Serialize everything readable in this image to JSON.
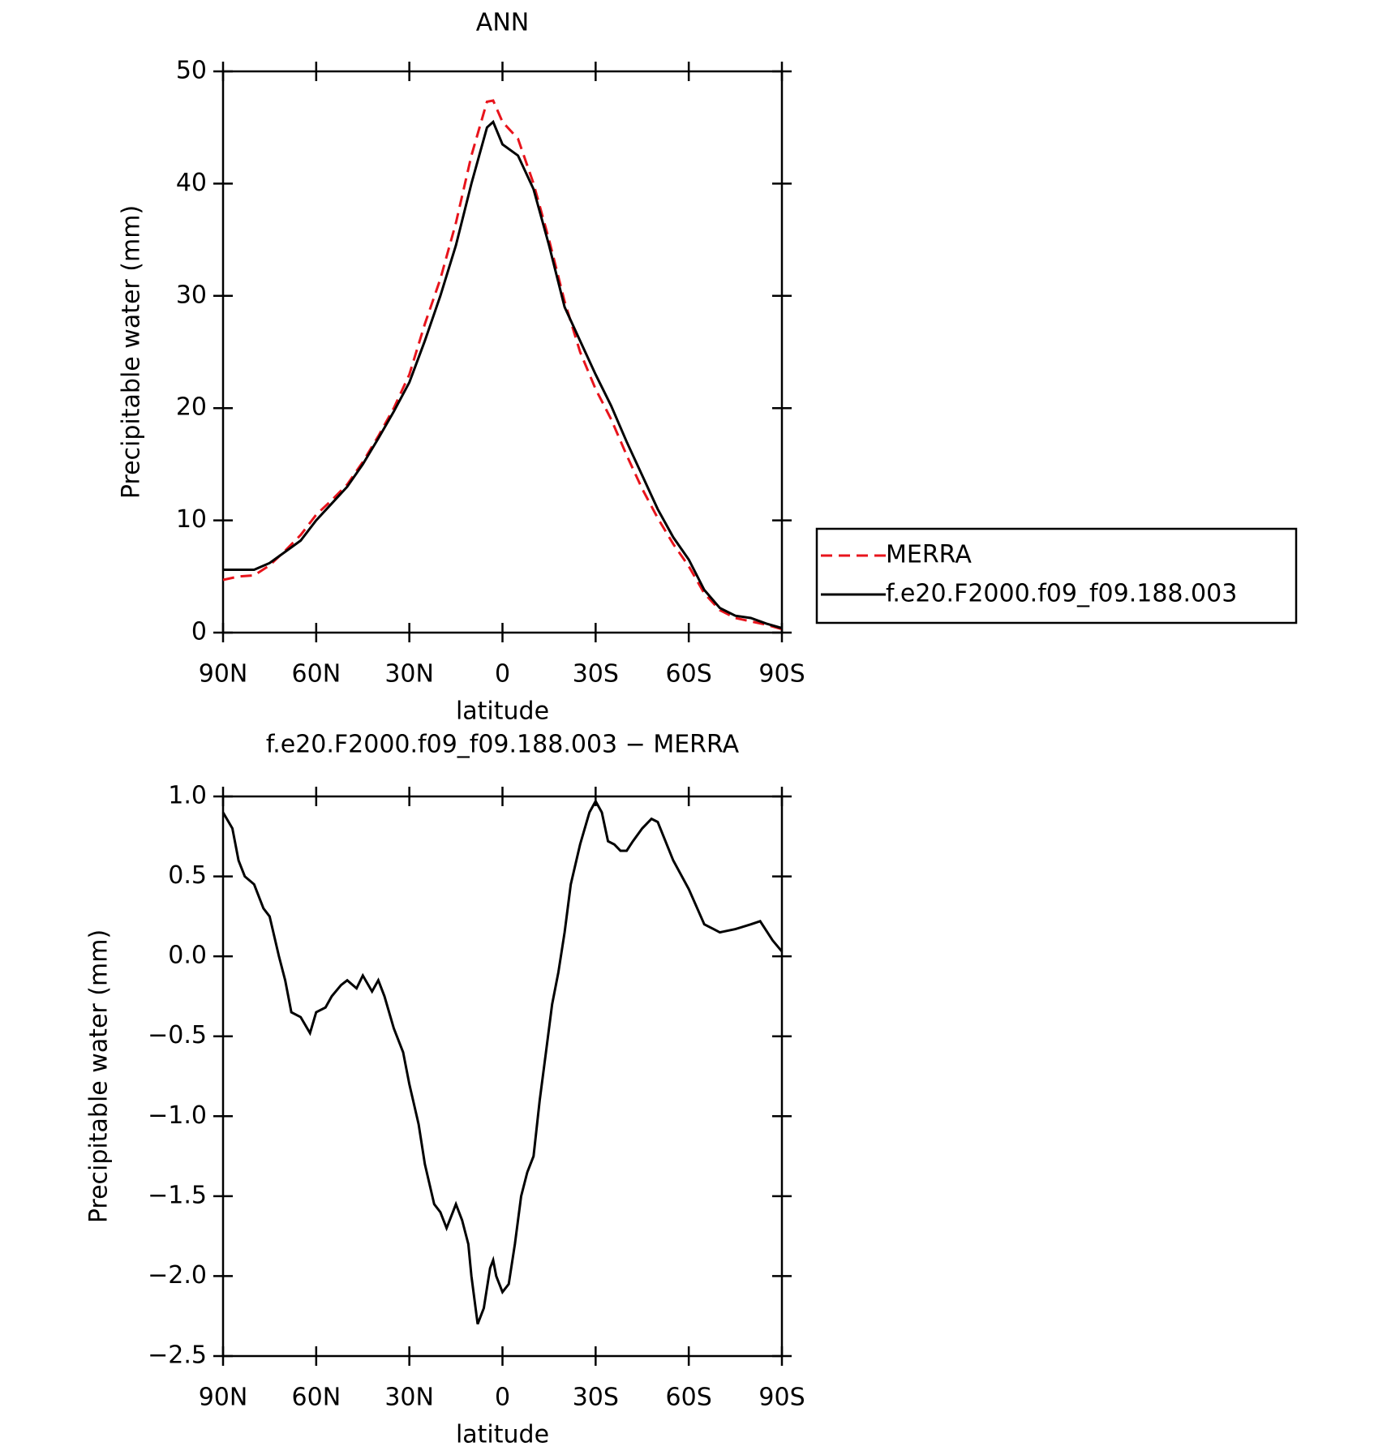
{
  "chart_data": [
    {
      "type": "line",
      "title": "ANN",
      "xlabel": "latitude",
      "ylabel": "Precipitable water (mm)",
      "x": [
        90,
        85,
        80,
        75,
        70,
        65,
        60,
        55,
        50,
        45,
        40,
        35,
        30,
        25,
        20,
        15,
        10,
        5,
        3,
        0,
        -5,
        -10,
        -15,
        -20,
        -25,
        -30,
        -35,
        -40,
        -45,
        -50,
        -55,
        -60,
        -65,
        -70,
        -75,
        -80,
        -85,
        -90
      ],
      "series": [
        {
          "name": "MERRA",
          "color": "#e8141c",
          "dashed": true,
          "values": [
            4.7,
            5.0,
            5.1,
            6.0,
            7.3,
            8.7,
            10.5,
            11.8,
            13.2,
            15.2,
            17.5,
            20.0,
            23.0,
            27.5,
            31.5,
            36.5,
            42.5,
            47.3,
            47.4,
            45.5,
            44.0,
            40.0,
            35.0,
            29.5,
            25.0,
            21.7,
            19.0,
            15.8,
            12.8,
            10.2,
            7.9,
            5.9,
            3.5,
            2.0,
            1.3,
            1.0,
            0.7,
            0.3
          ]
        },
        {
          "name": "f.e20.F2000.f09_f09.188.003",
          "color": "#000000",
          "dashed": false,
          "values": [
            5.6,
            5.6,
            5.6,
            6.2,
            7.2,
            8.2,
            10.0,
            11.5,
            13.0,
            15.0,
            17.3,
            19.7,
            22.3,
            26.0,
            30.0,
            34.5,
            40.0,
            45.0,
            45.5,
            43.5,
            42.5,
            39.5,
            34.5,
            29.0,
            26.0,
            23.0,
            20.2,
            17.0,
            14.0,
            11.0,
            8.5,
            6.5,
            3.8,
            2.2,
            1.5,
            1.3,
            0.8,
            0.4
          ]
        }
      ],
      "xlim": [
        90,
        -90
      ],
      "xticks": [
        {
          "value": 90,
          "label": "90N"
        },
        {
          "value": 60,
          "label": "60N"
        },
        {
          "value": 30,
          "label": "30N"
        },
        0,
        {
          "value": -30,
          "label": "30S"
        },
        {
          "value": -60,
          "label": "60S"
        },
        {
          "value": -90,
          "label": "90S"
        }
      ],
      "ylim": [
        0,
        50
      ],
      "yticks": [
        0,
        10,
        20,
        30,
        40,
        50
      ],
      "grid": false,
      "legend": "right"
    },
    {
      "type": "line",
      "title": "f.e20.F2000.f09_f09.188.003 − MERRA",
      "xlabel": "latitude",
      "ylabel": "Precipitable water (mm)",
      "x": [
        90,
        87,
        85,
        83,
        80,
        77,
        75,
        72,
        70,
        68,
        65,
        62,
        60,
        57,
        55,
        52,
        50,
        47,
        45,
        42,
        40,
        38,
        35,
        32,
        30,
        27,
        25,
        22,
        20,
        18,
        16,
        15,
        13,
        11,
        10,
        8,
        6,
        4,
        3,
        2,
        0,
        -2,
        -4,
        -6,
        -8,
        -10,
        -12,
        -14,
        -16,
        -18,
        -20,
        -22,
        -25,
        -28,
        -30,
        -32,
        -34,
        -36,
        -38,
        -40,
        -42,
        -45,
        -48,
        -50,
        -55,
        -60,
        -65,
        -68,
        -70,
        -75,
        -80,
        -83,
        -87,
        -90
      ],
      "series": [
        {
          "color": "#000000",
          "dashed": false,
          "values": [
            0.9,
            0.8,
            0.6,
            0.5,
            0.45,
            0.3,
            0.25,
            0.0,
            -0.15,
            -0.35,
            -0.38,
            -0.48,
            -0.35,
            -0.32,
            -0.25,
            -0.18,
            -0.15,
            -0.2,
            -0.12,
            -0.22,
            -0.15,
            -0.25,
            -0.45,
            -0.6,
            -0.8,
            -1.05,
            -1.3,
            -1.55,
            -1.6,
            -1.7,
            -1.6,
            -1.55,
            -1.65,
            -1.8,
            -2.0,
            -2.3,
            -2.2,
            -1.95,
            -1.9,
            -2.0,
            -2.1,
            -2.05,
            -1.8,
            -1.5,
            -1.35,
            -1.25,
            -0.9,
            -0.6,
            -0.3,
            -0.1,
            0.15,
            0.45,
            0.7,
            0.9,
            0.97,
            0.9,
            0.72,
            0.7,
            0.66,
            0.66,
            0.72,
            0.8,
            0.86,
            0.84,
            0.6,
            0.42,
            0.2,
            0.17,
            0.15,
            0.17,
            0.2,
            0.22,
            0.1,
            0.03
          ]
        }
      ],
      "xlim": [
        90,
        -90
      ],
      "xticks": [
        {
          "value": 90,
          "label": "90N"
        },
        {
          "value": 60,
          "label": "60N"
        },
        {
          "value": 30,
          "label": "30N"
        },
        0,
        {
          "value": -30,
          "label": "30S"
        },
        {
          "value": -60,
          "label": "60S"
        },
        {
          "value": -90,
          "label": "90S"
        }
      ],
      "ylim": [
        -2.5,
        1.0
      ],
      "yticks": [
        {
          "value": -2.5,
          "label": "−2.5"
        },
        {
          "value": -2.0,
          "label": "−2.0"
        },
        {
          "value": -1.5,
          "label": "−1.5"
        },
        {
          "value": -1.0,
          "label": "−1.0"
        },
        {
          "value": -0.5,
          "label": "−0.5"
        },
        {
          "value": 0,
          "label": "0.0"
        },
        0.5,
        {
          "value": 1,
          "label": "1.0"
        }
      ],
      "grid": false
    }
  ]
}
